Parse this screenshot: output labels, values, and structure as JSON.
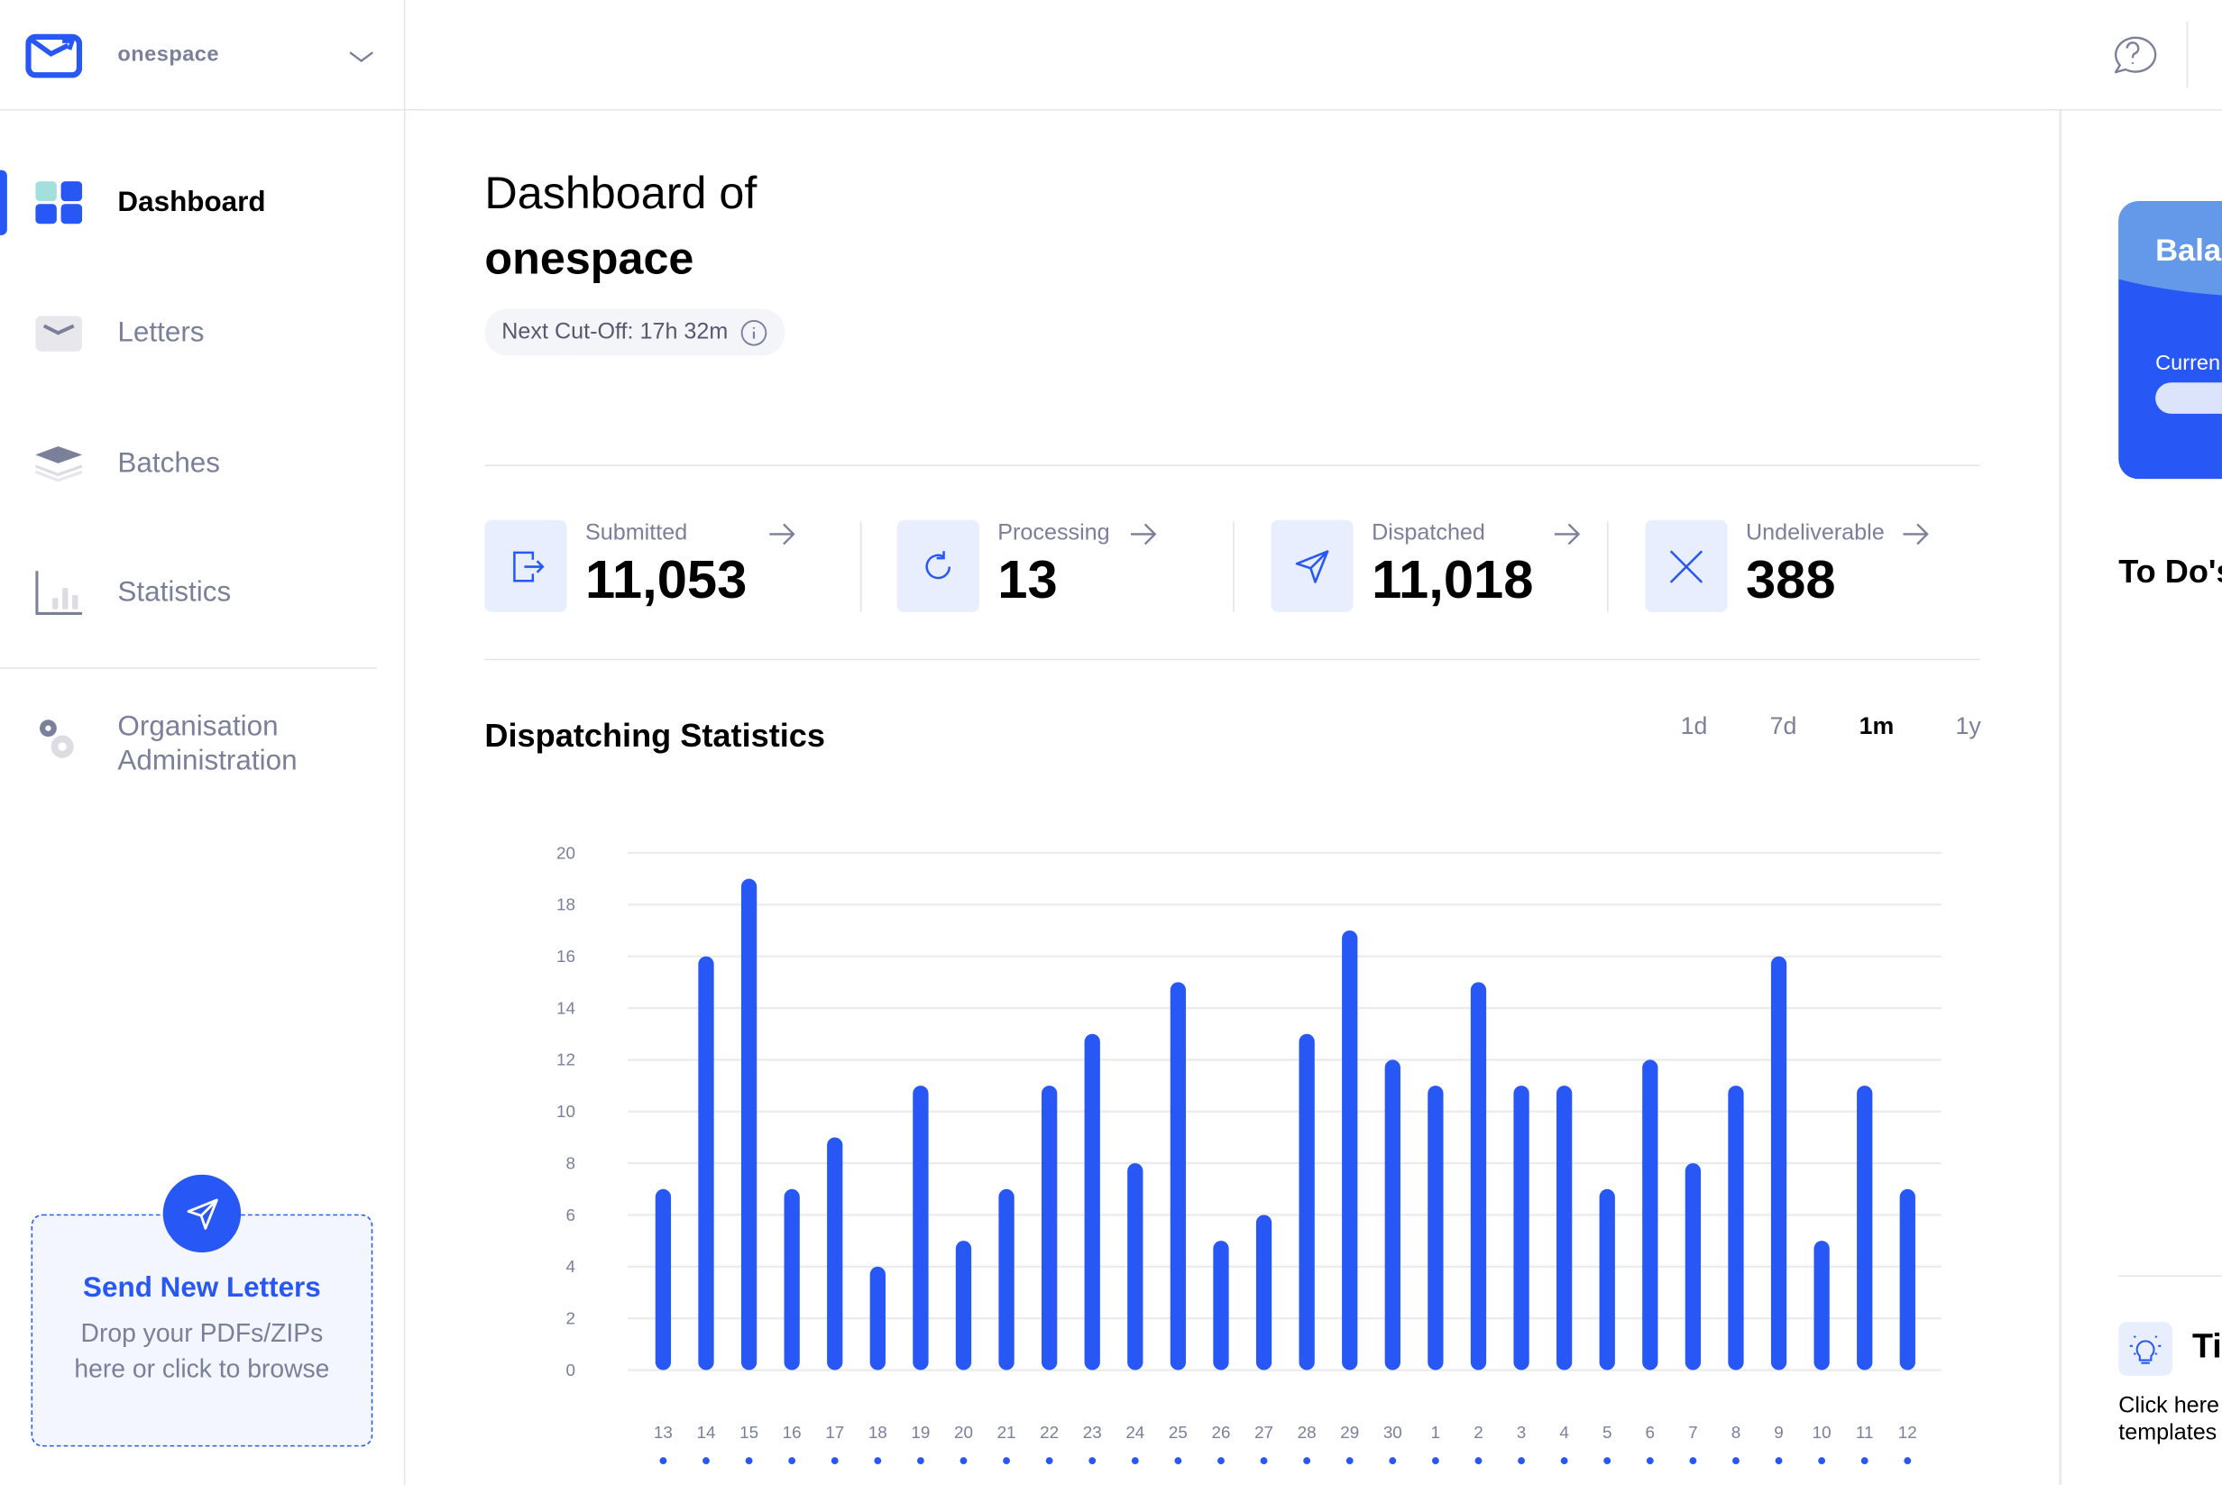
{
  "workspace": {
    "name": "onespace"
  },
  "sidebar": {
    "items": [
      {
        "label": "Dashboard",
        "icon": "dashboard-icon",
        "active": true
      },
      {
        "label": "Letters",
        "icon": "envelope-icon"
      },
      {
        "label": "Batches",
        "icon": "layers-icon"
      },
      {
        "label": "Statistics",
        "icon": "bar-chart-icon"
      },
      {
        "label": "Organisation Administration",
        "icon": "gears-icon"
      }
    ],
    "upload": {
      "title": "Send New Letters",
      "subtitle": "Drop your PDFs/ZIPs here or click to browse"
    }
  },
  "header": {
    "help_icon": "help-chat-icon"
  },
  "main": {
    "title_line1": "Dashboard of",
    "title_line2": "onespace",
    "cutoff": "Next Cut-Off: 17h 32m",
    "stats": [
      {
        "label": "Submitted",
        "value": "11,053",
        "icon": "file-export-icon"
      },
      {
        "label": "Processing",
        "value": "13",
        "icon": "refresh-icon"
      },
      {
        "label": "Dispatched",
        "value": "11,018",
        "icon": "send-icon"
      },
      {
        "label": "Undeliverable",
        "value": "388",
        "icon": "x-icon"
      }
    ],
    "section_title": "Dispatching Statistics",
    "ranges": [
      "1d",
      "7d",
      "1m",
      "1y"
    ],
    "selected_range": "1m"
  },
  "right": {
    "balance_title": "Bala",
    "balance_sub": "Curren",
    "todo": "To Do's",
    "tip_title": "Ti",
    "tip_line1": "Click here",
    "tip_line2": "templates"
  },
  "colors": {
    "accent": "#2757f5",
    "accent_light": "#e8eefe",
    "muted": "#7a7f9a"
  },
  "chart_data": {
    "type": "bar",
    "categories": [
      "13",
      "14",
      "15",
      "16",
      "17",
      "18",
      "19",
      "20",
      "21",
      "22",
      "23",
      "24",
      "25",
      "26",
      "27",
      "28",
      "29",
      "30",
      "1",
      "2",
      "3",
      "4",
      "5",
      "6",
      "7",
      "8",
      "9",
      "10",
      "11",
      "12"
    ],
    "values": [
      7,
      16,
      19,
      7,
      9,
      4,
      11,
      5,
      7,
      11,
      13,
      8,
      15,
      5,
      6,
      13,
      17,
      12,
      11,
      15,
      11,
      11,
      7,
      12,
      8,
      11,
      16,
      5,
      11,
      7
    ],
    "ylim": [
      0,
      20
    ],
    "yticks": [
      0,
      2,
      4,
      6,
      8,
      10,
      12,
      14,
      16,
      18,
      20
    ],
    "grid": true,
    "color": "#2757f5"
  }
}
